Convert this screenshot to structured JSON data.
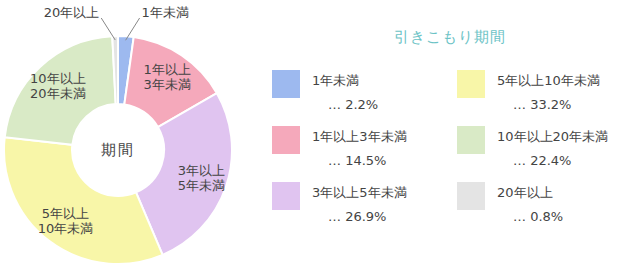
{
  "chart_data": {
    "type": "pie",
    "legend_title": "引きこもり期間",
    "center_label": "期間",
    "categories": [
      "1年未満",
      "1年以上3年未満",
      "3年以上5年未満",
      "5年以上10年未満",
      "10年以上20年未満",
      "20年以上"
    ],
    "slice_labels": [
      [
        "1年未満"
      ],
      [
        "1年以上",
        "3年未満"
      ],
      [
        "3年以上",
        "5年未満"
      ],
      [
        "5年以上",
        "10年未満"
      ],
      [
        "10年以上",
        "20年未満"
      ],
      [
        "20年以上"
      ]
    ],
    "values": [
      2.2,
      14.5,
      26.9,
      33.2,
      22.4,
      0.8
    ],
    "value_labels": [
      "… 2.2%",
      "… 14.5%",
      "… 26.9%",
      "… 33.2%",
      "… 22.4%",
      "… 0.8%"
    ],
    "colors": [
      "#9db9ef",
      "#f5a9bb",
      "#e0c4f0",
      "#f8f6a8",
      "#d9eac6",
      "#e4e4e4"
    ],
    "legend": "right"
  }
}
